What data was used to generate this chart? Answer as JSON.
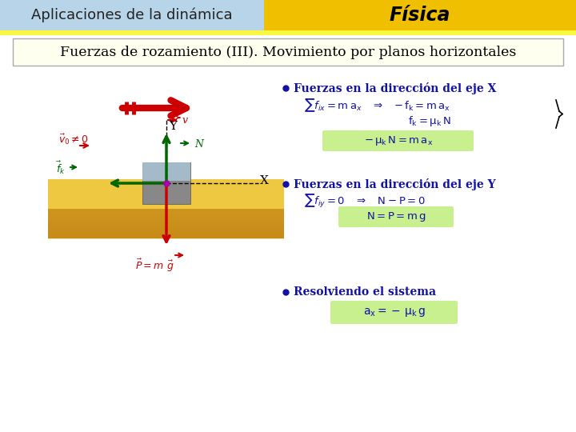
{
  "bg_color": "#c8c8c8",
  "header_left_color": "#b8d4e8",
  "header_right_color": "#f0c000",
  "header_left_text": "Aplicaciones de la dinámica",
  "header_right_text": "Física",
  "subtitle_text": "Fuerzas de rozamiento (III). Movimiento por planos horizontales",
  "subtitle_bg": "#fffff0",
  "blue": "#1010aa",
  "red": "#cc0000",
  "dark_green": "#006600",
  "green_box": "#c8f08f",
  "ground_top": "#f0d060",
  "ground_bottom": "#c89020",
  "block_gray": "#909090",
  "block_blue": "#b0d0e8"
}
